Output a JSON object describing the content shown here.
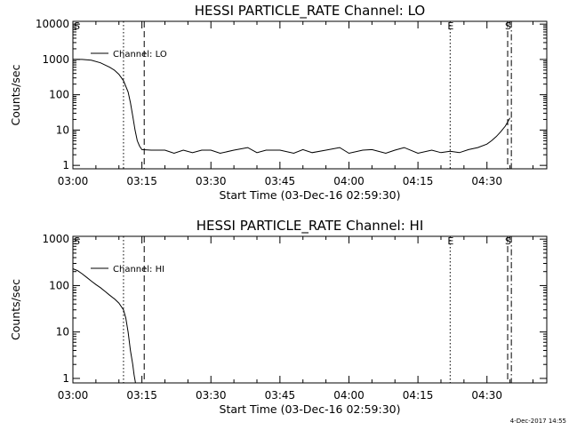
{
  "stamp": "4-Dec-2017 14:55",
  "chart_data": [
    {
      "type": "line",
      "title": "HESSI PARTICLE_RATE Channel: LO",
      "xlabel": "Start Time (03-Dec-16 02:59:30)",
      "ylabel": "Counts/sec",
      "yscale": "log",
      "xlim": [
        "03:00",
        "04:43"
      ],
      "ylim": [
        0.8,
        12000
      ],
      "x_ticks": [
        "03:00",
        "03:15",
        "03:30",
        "03:45",
        "04:00",
        "04:15",
        "04:30"
      ],
      "y_ticks": [
        "1",
        "10",
        "100",
        "1000",
        "10000"
      ],
      "y_tick_values": [
        1,
        10,
        100,
        1000,
        10000
      ],
      "legend": {
        "position": "top-left",
        "label": "Channel: LO"
      },
      "markers": [
        {
          "label": "S",
          "time": "03:00",
          "style": "none"
        },
        {
          "label": "",
          "time": "03:11",
          "style": "dotted"
        },
        {
          "label": "",
          "time": "03:15.5",
          "style": "dashed"
        },
        {
          "label": "E",
          "time": "04:22",
          "style": "dotted"
        },
        {
          "label": "S",
          "time": "04:34.5",
          "style": "dashed"
        },
        {
          "label": "",
          "time": "04:35.3",
          "style": "dash-dot"
        }
      ],
      "series": [
        {
          "name": "Channel: LO",
          "x": [
            "03:00",
            "03:02",
            "03:04",
            "03:06",
            "03:08",
            "03:09",
            "03:10",
            "03:11",
            "03:12",
            "03:12.5",
            "03:13",
            "03:13.5",
            "03:14",
            "03:14.5",
            "03:15",
            "03:17",
            "03:20",
            "03:22",
            "03:24",
            "03:26",
            "03:28",
            "03:30",
            "03:32",
            "03:35",
            "03:38",
            "03:40",
            "03:42",
            "03:45",
            "03:48",
            "03:50",
            "03:52",
            "03:55",
            "03:58",
            "04:00",
            "04:03",
            "04:05",
            "04:08",
            "04:10",
            "04:12",
            "04:15",
            "04:18",
            "04:20",
            "04:22",
            "04:24",
            "04:26",
            "04:28",
            "04:30",
            "04:31",
            "04:32",
            "04:33",
            "04:34",
            "04:35"
          ],
          "values": [
            1000,
            1000,
            950,
            800,
            600,
            500,
            380,
            250,
            120,
            60,
            25,
            10,
            5,
            3.5,
            2.8,
            2.7,
            2.7,
            2.2,
            2.7,
            2.3,
            2.7,
            2.7,
            2.2,
            2.7,
            3.2,
            2.3,
            2.7,
            2.7,
            2.2,
            2.8,
            2.3,
            2.7,
            3.2,
            2.2,
            2.7,
            2.8,
            2.2,
            2.7,
            3.2,
            2.2,
            2.7,
            2.3,
            2.5,
            2.3,
            2.8,
            3.2,
            4,
            5,
            6.5,
            9,
            13,
            22
          ]
        }
      ]
    },
    {
      "type": "line",
      "title": "HESSI PARTICLE_RATE Channel: HI",
      "xlabel": "Start Time (03-Dec-16 02:59:30)",
      "ylabel": "Counts/sec",
      "yscale": "log",
      "xlim": [
        "03:00",
        "04:43"
      ],
      "ylim": [
        0.8,
        1150
      ],
      "x_ticks": [
        "03:00",
        "03:15",
        "03:30",
        "03:45",
        "04:00",
        "04:15",
        "04:30"
      ],
      "y_ticks": [
        "1",
        "10",
        "100",
        "1000"
      ],
      "y_tick_values": [
        1,
        10,
        100,
        1000
      ],
      "legend": {
        "position": "top-left",
        "label": "Channel: HI"
      },
      "markers": [
        {
          "label": "S",
          "time": "03:00",
          "style": "none"
        },
        {
          "label": "",
          "time": "03:11",
          "style": "dotted"
        },
        {
          "label": "",
          "time": "03:15.5",
          "style": "dashed"
        },
        {
          "label": "E",
          "time": "04:22",
          "style": "dotted"
        },
        {
          "label": "S",
          "time": "04:34.5",
          "style": "dashed"
        },
        {
          "label": "",
          "time": "04:35.3",
          "style": "dash-dot"
        }
      ],
      "series": [
        {
          "name": "Channel: HI",
          "x": [
            "03:00",
            "03:01",
            "03:02",
            "03:03",
            "03:04",
            "03:05",
            "03:06",
            "03:07",
            "03:08",
            "03:09",
            "03:10",
            "03:11",
            "03:11.5",
            "03:12",
            "03:12.5",
            "03:13",
            "03:13.3",
            "03:13.6"
          ],
          "values": [
            230,
            210,
            180,
            150,
            125,
            105,
            90,
            75,
            62,
            52,
            42,
            30,
            20,
            10,
            4,
            2,
            1.2,
            0.8
          ]
        }
      ]
    }
  ]
}
